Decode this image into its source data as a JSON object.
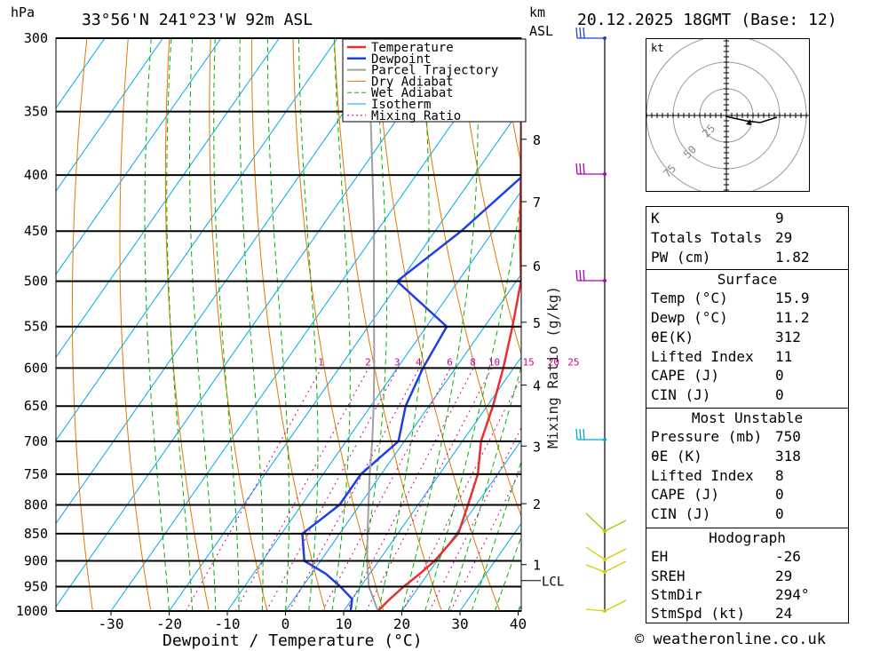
{
  "header": {
    "hpa_label": "hPa",
    "location": "33°56'N 241°23'W 92m ASL",
    "km_label": "km",
    "asl_label": "ASL",
    "datetime": "20.12.2025 18GMT (Base: 12)"
  },
  "chart_data": {
    "type": "line",
    "title": "",
    "xlabel": "Dewpoint / Temperature (°C)",
    "ylabel": "hPa",
    "mixing_ratio_label": "Mixing Ratio (g/kg)",
    "xlim": [
      -40,
      40
    ],
    "ylim": [
      1000,
      300
    ],
    "x_ticks": [
      "-30",
      "-20",
      "-10",
      "0",
      "10",
      "20",
      "30",
      "40"
    ],
    "x_tick_values": [
      -30,
      -20,
      -10,
      0,
      10,
      20,
      30,
      40
    ],
    "pressure_levels": [
      300,
      350,
      400,
      450,
      500,
      550,
      600,
      650,
      700,
      750,
      800,
      850,
      900,
      950,
      1000
    ],
    "pressure_labels": [
      "300",
      "350",
      "400",
      "450",
      "500",
      "550",
      "600",
      "650",
      "700",
      "750",
      "800",
      "850",
      "900",
      "950",
      "1000"
    ],
    "km_ticks": [
      {
        "label": "1",
        "p": 907
      },
      {
        "label": "2",
        "p": 798
      },
      {
        "label": "3",
        "p": 707
      },
      {
        "label": "4",
        "p": 622
      },
      {
        "label": "5",
        "p": 545
      },
      {
        "label": "6",
        "p": 484
      },
      {
        "label": "7",
        "p": 423
      },
      {
        "label": "8",
        "p": 371
      }
    ],
    "lcl": {
      "label": "LCL",
      "p": 938
    },
    "mixing_ratio_values": [
      "1",
      "2",
      "3",
      "4",
      "6",
      "8",
      "10",
      "15",
      "20",
      "25"
    ],
    "legend_placement": "top-right",
    "legend": [
      "Temperature",
      "Dewpoint",
      "Parcel Trajectory",
      "Dry Adiabat",
      "Wet Adiabat",
      "Isotherm",
      "Mixing Ratio"
    ],
    "colors": {
      "temperature": "#e83030",
      "dewpoint": "#1e40e0",
      "parcel": "#a0a0a0",
      "dry_adiabat": "#e07800",
      "wet_adiabat": "#00b400",
      "isotherm": "#00a8f0",
      "mixing_ratio": "#d0008c"
    },
    "series": [
      {
        "name": "Temperature",
        "points": [
          [
            1000,
            15.9
          ],
          [
            975,
            16.5
          ],
          [
            950,
            17.4
          ],
          [
            925,
            18.6
          ],
          [
            900,
            19.6
          ],
          [
            850,
            20.4
          ],
          [
            800,
            18.6
          ],
          [
            750,
            16.6
          ],
          [
            700,
            13.2
          ],
          [
            650,
            11.0
          ],
          [
            600,
            8.2
          ],
          [
            550,
            4.8
          ],
          [
            500,
            0.8
          ],
          [
            450,
            -5.4
          ],
          [
            400,
            -12.0
          ],
          [
            350,
            -19.6
          ],
          [
            300,
            -28.5
          ]
        ]
      },
      {
        "name": "Dewpoint",
        "points": [
          [
            1000,
            11.2
          ],
          [
            975,
            10.0
          ],
          [
            950,
            6.5
          ],
          [
            925,
            2.5
          ],
          [
            900,
            -2.8
          ],
          [
            850,
            -6.4
          ],
          [
            800,
            -3.5
          ],
          [
            750,
            -3.5
          ],
          [
            700,
            -1.0
          ],
          [
            650,
            -4.0
          ],
          [
            600,
            -5.6
          ],
          [
            550,
            -6.5
          ],
          [
            500,
            -20.5
          ],
          [
            450,
            -15.5
          ],
          [
            400,
            -11.5
          ],
          [
            350,
            -8.5
          ],
          [
            300,
            -13.0
          ]
        ]
      },
      {
        "name": "Parcel Trajectory",
        "points": [
          [
            1000,
            15.9
          ],
          [
            950,
            11.4
          ],
          [
            900,
            8.0
          ],
          [
            850,
            4.8
          ],
          [
            800,
            1.5
          ],
          [
            750,
            -2.0
          ],
          [
            700,
            -5.5
          ],
          [
            650,
            -9.5
          ],
          [
            600,
            -14.0
          ],
          [
            550,
            -19.0
          ],
          [
            500,
            -24.5
          ],
          [
            450,
            -30.5
          ],
          [
            400,
            -37.5
          ],
          [
            350,
            -45.5
          ],
          [
            300,
            -54.5
          ]
        ]
      }
    ]
  },
  "wind_barbs_label": "km",
  "hodograph": {
    "unit": "kt",
    "rings": [
      "25",
      "50",
      "75"
    ]
  },
  "indices": [
    {
      "label": "K",
      "value": "9"
    },
    {
      "label": "Totals Totals",
      "value": "29"
    },
    {
      "label": "PW (cm)",
      "value": "1.82"
    }
  ],
  "surface": {
    "title": "Surface",
    "rows": [
      {
        "label": "Temp (°C)",
        "value": "15.9"
      },
      {
        "label": "Dewp (°C)",
        "value": "11.2"
      },
      {
        "label": "θE(K)",
        "value": "312"
      },
      {
        "label": "Lifted Index",
        "value": "11"
      },
      {
        "label": "CAPE (J)",
        "value": "0"
      },
      {
        "label": "CIN (J)",
        "value": "0"
      }
    ]
  },
  "most_unstable": {
    "title": "Most Unstable",
    "rows": [
      {
        "label": "Pressure (mb)",
        "value": "750"
      },
      {
        "label": "θE (K)",
        "value": "318"
      },
      {
        "label": "Lifted Index",
        "value": "8"
      },
      {
        "label": "CAPE (J)",
        "value": "0"
      },
      {
        "label": "CIN (J)",
        "value": "0"
      }
    ]
  },
  "hodograph_table": {
    "title": "Hodograph",
    "rows": [
      {
        "label": "EH",
        "value": "-26"
      },
      {
        "label": "SREH",
        "value": "29"
      },
      {
        "label": "StmDir",
        "value": "294°"
      },
      {
        "label": "StmSpd (kt)",
        "value": "24"
      }
    ]
  },
  "footer": "© weatheronline.co.uk"
}
